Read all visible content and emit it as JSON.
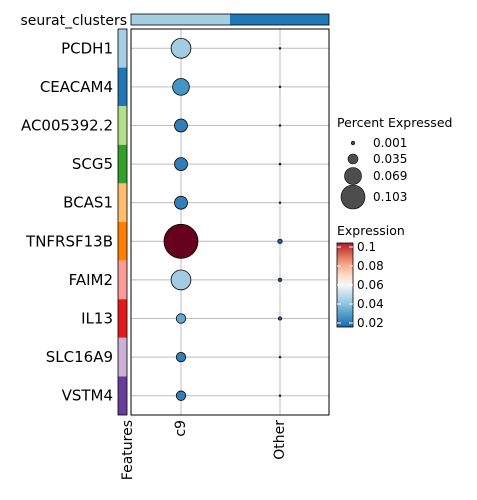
{
  "chart_data": {
    "type": "dot",
    "annotation_label": "seurat_clusters",
    "annotation_colors": [
      "#a6cee3",
      "#1f78b4"
    ],
    "features_label": "Features",
    "features": [
      "PCDH1",
      "CEACAM4",
      "AC005392.2",
      "SCG5",
      "BCAS1",
      "TNFRSF13B",
      "FAIM2",
      "IL13",
      "SLC16A9",
      "VSTM4"
    ],
    "feature_colors": [
      "#a6cee3",
      "#1f78b4",
      "#b2df8a",
      "#33a02c",
      "#fdbf6f",
      "#ff7f00",
      "#fb9a99",
      "#e31a1c",
      "#cab2d6",
      "#6a3d9a"
    ],
    "groups": [
      "c9",
      "Other"
    ],
    "series": [
      {
        "name": "c9",
        "percent_expressed": [
          0.035,
          0.025,
          0.015,
          0.015,
          0.015,
          0.103,
          0.035,
          0.008,
          0.008,
          0.008
        ],
        "expression": [
          0.045,
          0.03,
          0.025,
          0.025,
          0.025,
          0.1,
          0.045,
          0.035,
          0.025,
          0.025
        ]
      },
      {
        "name": "Other",
        "percent_expressed": [
          0.001,
          0.001,
          0.001,
          0.001,
          0.001,
          0.004,
          0.002,
          0.002,
          0.001,
          0.001
        ],
        "expression": [
          0.02,
          0.02,
          0.02,
          0.02,
          0.02,
          0.02,
          0.02,
          0.02,
          0.02,
          0.02
        ]
      }
    ],
    "size_legend": {
      "title": "Percent Expressed",
      "breaks": [
        0.001,
        0.035,
        0.069,
        0.103
      ],
      "labels": [
        "0.001",
        "0.035",
        "0.069",
        "0.103"
      ]
    },
    "color_legend": {
      "title": "Expression",
      "range": [
        0.02,
        0.1
      ],
      "breaks": [
        0.02,
        0.04,
        0.06,
        0.08,
        0.1
      ],
      "labels": [
        "0.02",
        "0.04",
        "0.06",
        "0.08",
        "0.1"
      ],
      "low_color": "#2166ac",
      "mid_color": "#f7f7f7",
      "high_color": "#67001f"
    },
    "grid": true
  }
}
